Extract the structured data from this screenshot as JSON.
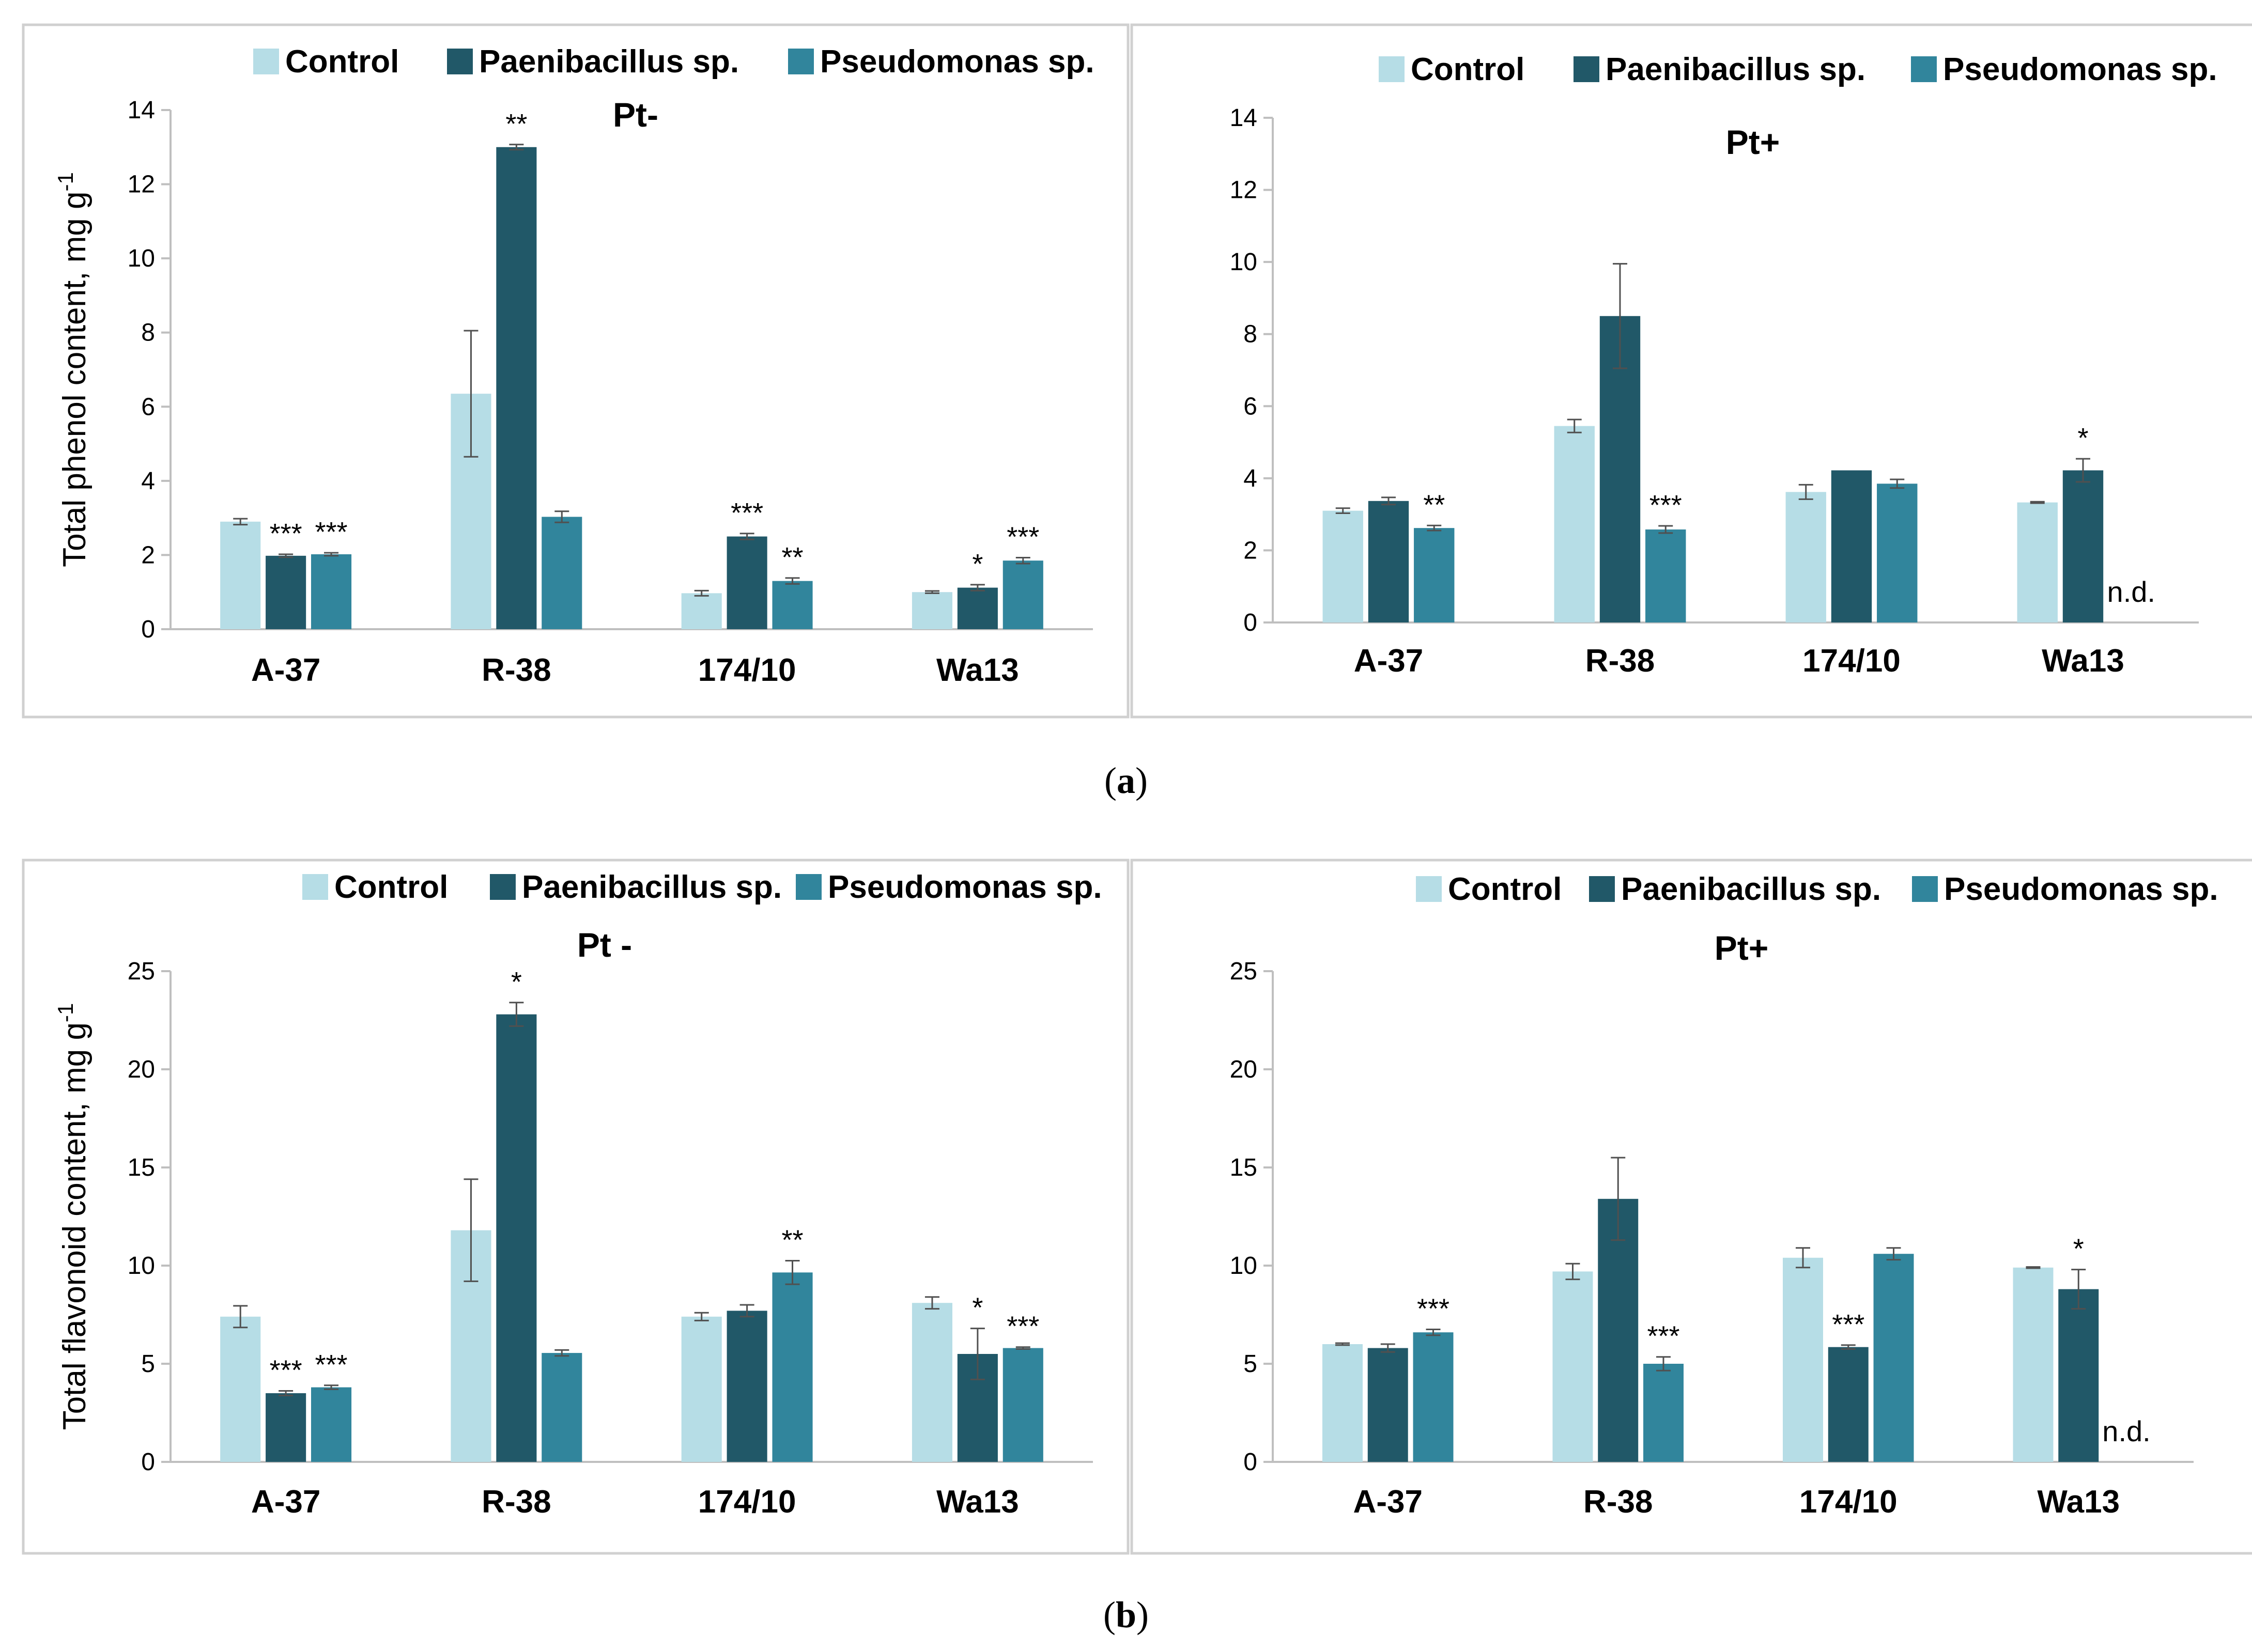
{
  "colors": {
    "control": "#b6dde6",
    "paenibacillus": "#215868",
    "pseudomonas": "#31859c",
    "panel_border": "#d0d0d0",
    "axis": "#bfbfbf",
    "error_bar": "#505050"
  },
  "captions": {
    "a": "a",
    "b": "b"
  },
  "chart_data": [
    {
      "type": "bar",
      "title": "Pt-",
      "ylabel": "Total phenol content, mg g",
      "ylabel_sup": "-1",
      "ylim": [
        0,
        14
      ],
      "yticks": [
        0,
        2,
        4,
        6,
        8,
        10,
        12,
        14
      ],
      "categories": [
        "A-37",
        "R-38",
        "174/10",
        "Wa13"
      ],
      "legend": "top",
      "grid": false,
      "series": [
        {
          "name": "Control",
          "values": [
            2.9,
            6.35,
            0.97,
            1.0
          ],
          "errors": [
            0.08,
            1.7,
            0.07,
            0.03
          ],
          "sig": [
            "",
            "",
            "",
            ""
          ]
        },
        {
          "name": "Paenibacillus sp.",
          "values": [
            1.98,
            13.0,
            2.5,
            1.12
          ],
          "errors": [
            0.04,
            0.07,
            0.08,
            0.08
          ],
          "sig": [
            "***",
            "**",
            "***",
            "*"
          ]
        },
        {
          "name": "Pseudomonas sp.",
          "values": [
            2.02,
            3.03,
            1.3,
            1.85
          ],
          "errors": [
            0.04,
            0.15,
            0.08,
            0.08
          ],
          "sig": [
            "***",
            "",
            "**",
            "***"
          ]
        }
      ]
    },
    {
      "type": "bar",
      "title": "Pt+",
      "ylabel": "",
      "ylabel_sup": "",
      "ylim": [
        0,
        14
      ],
      "yticks": [
        0,
        2,
        4,
        6,
        8,
        10,
        12,
        14
      ],
      "categories": [
        "A-37",
        "R-38",
        "174/10",
        "Wa13"
      ],
      "legend": "top",
      "grid": false,
      "annotations": [
        {
          "category": 3,
          "series": 2,
          "text": "n.d."
        }
      ],
      "series": [
        {
          "name": "Control",
          "values": [
            3.1,
            5.45,
            3.62,
            3.33
          ],
          "errors": [
            0.07,
            0.18,
            0.2,
            0.02
          ],
          "sig": [
            "",
            "",
            "",
            ""
          ]
        },
        {
          "name": "Paenibacillus sp.",
          "values": [
            3.37,
            8.5,
            4.22,
            4.22
          ],
          "errors": [
            0.1,
            1.45,
            0.0,
            0.32
          ],
          "sig": [
            "",
            "",
            "",
            "*"
          ]
        },
        {
          "name": "Pseudomonas sp.",
          "values": [
            2.62,
            2.58,
            3.85,
            null
          ],
          "errors": [
            0.07,
            0.1,
            0.12,
            null
          ],
          "sig": [
            "**",
            "***",
            "",
            ""
          ]
        }
      ]
    },
    {
      "type": "bar",
      "title": "Pt -",
      "ylabel": "Total flavonoid content, mg g",
      "ylabel_sup": "-1",
      "ylim": [
        0,
        25
      ],
      "yticks": [
        0,
        5,
        10,
        15,
        20,
        25
      ],
      "categories": [
        "A-37",
        "R-38",
        "174/10",
        "Wa13"
      ],
      "legend": "top",
      "grid": false,
      "series": [
        {
          "name": "Control",
          "values": [
            7.4,
            11.8,
            7.4,
            8.1
          ],
          "errors": [
            0.55,
            2.6,
            0.2,
            0.3
          ],
          "sig": [
            "",
            "",
            "",
            ""
          ]
        },
        {
          "name": "Paenibacillus sp.",
          "values": [
            3.5,
            22.8,
            7.7,
            5.5
          ],
          "errors": [
            0.12,
            0.6,
            0.3,
            1.3
          ],
          "sig": [
            "***",
            "*",
            "",
            "*"
          ]
        },
        {
          "name": "Pseudomonas sp.",
          "values": [
            3.8,
            5.55,
            9.65,
            5.8
          ],
          "errors": [
            0.1,
            0.15,
            0.6,
            0.05
          ],
          "sig": [
            "***",
            "",
            "**",
            "***"
          ]
        }
      ]
    },
    {
      "type": "bar",
      "title": "Pt+",
      "ylabel": "",
      "ylabel_sup": "",
      "ylim": [
        0,
        25
      ],
      "yticks": [
        0,
        5,
        10,
        15,
        20,
        25
      ],
      "categories": [
        "A-37",
        "R-38",
        "174/10",
        "Wa13"
      ],
      "legend": "top",
      "grid": false,
      "annotations": [
        {
          "category": 3,
          "series": 2,
          "text": "n.d."
        }
      ],
      "series": [
        {
          "name": "Control",
          "values": [
            6.0,
            9.7,
            10.4,
            9.9
          ],
          "errors": [
            0.05,
            0.4,
            0.5,
            0.03
          ],
          "sig": [
            "",
            "",
            "",
            ""
          ]
        },
        {
          "name": "Paenibacillus sp.",
          "values": [
            5.8,
            13.4,
            5.85,
            8.8
          ],
          "errors": [
            0.2,
            2.1,
            0.1,
            1.0
          ],
          "sig": [
            "",
            "",
            "***",
            "*"
          ]
        },
        {
          "name": "Pseudomonas sp.",
          "values": [
            6.6,
            5.0,
            10.6,
            null
          ],
          "errors": [
            0.15,
            0.35,
            0.3,
            null
          ],
          "sig": [
            "***",
            "***",
            "",
            ""
          ]
        }
      ]
    }
  ]
}
